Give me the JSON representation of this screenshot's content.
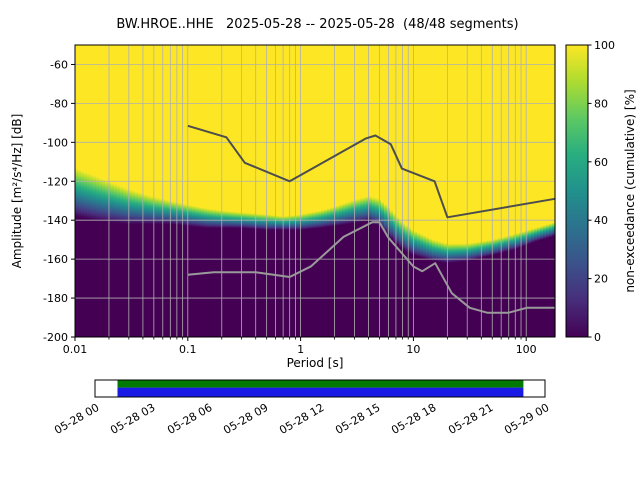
{
  "title": "BW.HROE..HHE   2025-05-28 -- 2025-05-28  (48/48 segments)",
  "chart_data": {
    "type": "heatmap",
    "x_axis": {
      "label": "Period [s]",
      "scale": "log",
      "min": 0.01,
      "max": 180,
      "ticks": [
        0.01,
        0.1,
        1,
        10,
        100
      ],
      "tick_labels": [
        "0.01",
        "0.1",
        "1",
        "10",
        "100"
      ]
    },
    "y_axis": {
      "label": "Amplitude [m²/s⁴/Hz] [dB]",
      "min": -200,
      "max": -50,
      "ticks": [
        -60,
        -80,
        -100,
        -120,
        -140,
        -160,
        -180,
        -200
      ]
    },
    "colorbar": {
      "label": "non-exceedance (cumulative) [%]",
      "min": 0,
      "max": 100,
      "ticks": [
        0,
        20,
        40,
        60,
        80,
        100
      ],
      "colors_low_to_high": [
        "#440154",
        "#472d7b",
        "#3b528b",
        "#2c728e",
        "#21918c",
        "#28ae80",
        "#5ec962",
        "#addc30",
        "#fde725"
      ]
    },
    "grid_color": "#b0b0b0",
    "background_low_color": "#440154",
    "distribution_boundary_p_top_width": [
      [
        0.01,
        -113,
        25
      ],
      [
        0.015,
        -117,
        23
      ],
      [
        0.02,
        -120,
        21
      ],
      [
        0.03,
        -124,
        18
      ],
      [
        0.05,
        -128,
        14
      ],
      [
        0.07,
        -130,
        12
      ],
      [
        0.1,
        -132,
        11
      ],
      [
        0.15,
        -134,
        10
      ],
      [
        0.2,
        -135,
        9
      ],
      [
        0.3,
        -136,
        8
      ],
      [
        0.5,
        -137,
        8
      ],
      [
        0.7,
        -138,
        7
      ],
      [
        1.0,
        -137,
        8
      ],
      [
        1.5,
        -135,
        9
      ],
      [
        2.0,
        -133,
        10
      ],
      [
        3.0,
        -129.5,
        12
      ],
      [
        4.0,
        -127.5,
        13
      ],
      [
        5.0,
        -129,
        14
      ],
      [
        6.0,
        -133,
        15
      ],
      [
        8.0,
        -141,
        14
      ],
      [
        10,
        -145,
        13
      ],
      [
        15,
        -150,
        11
      ],
      [
        20,
        -152,
        10
      ],
      [
        30,
        -152,
        9
      ],
      [
        50,
        -150,
        8
      ],
      [
        80,
        -147,
        8
      ],
      [
        120,
        -144,
        7
      ],
      [
        180,
        -141,
        7
      ]
    ],
    "noise_models": {
      "high": {
        "name": "high noise model line",
        "color": "#4d4d4d",
        "points": [
          [
            0.1,
            -91.5
          ],
          [
            0.22,
            -97.4
          ],
          [
            0.32,
            -110.5
          ],
          [
            0.8,
            -120.0
          ],
          [
            3.8,
            -98.0
          ],
          [
            4.6,
            -96.5
          ],
          [
            6.3,
            -101.0
          ],
          [
            7.9,
            -113.5
          ],
          [
            15.4,
            -120.0
          ],
          [
            20.0,
            -138.5
          ],
          [
            180.0,
            -129.0
          ]
        ]
      },
      "low": {
        "name": "low noise model line",
        "color": "#9a9a9a",
        "points": [
          [
            0.1,
            -168.0
          ],
          [
            0.17,
            -166.7
          ],
          [
            0.4,
            -166.7
          ],
          [
            0.8,
            -169.2
          ],
          [
            1.24,
            -163.7
          ],
          [
            2.4,
            -148.6
          ],
          [
            4.3,
            -141.1
          ],
          [
            5.0,
            -141.1
          ],
          [
            6.0,
            -149.0
          ],
          [
            10.0,
            -163.8
          ],
          [
            12.0,
            -166.2
          ],
          [
            15.6,
            -162.1
          ],
          [
            21.9,
            -177.5
          ],
          [
            31.6,
            -185.0
          ],
          [
            45.0,
            -187.5
          ],
          [
            70.0,
            -187.5
          ],
          [
            101.0,
            -185.0
          ],
          [
            180.0,
            -185.0
          ]
        ]
      }
    },
    "timeline": {
      "labels": [
        "05-28 00",
        "05-28 03",
        "05-28 06",
        "05-28 09",
        "05-28 12",
        "05-28 15",
        "05-28 18",
        "05-28 21",
        "05-29 00"
      ],
      "bar_colors": {
        "top": "#007a00",
        "bottom": "#1a1ae6"
      },
      "fill_start": 0.05,
      "fill_end": 0.952,
      "top_fraction": 0.42
    }
  }
}
